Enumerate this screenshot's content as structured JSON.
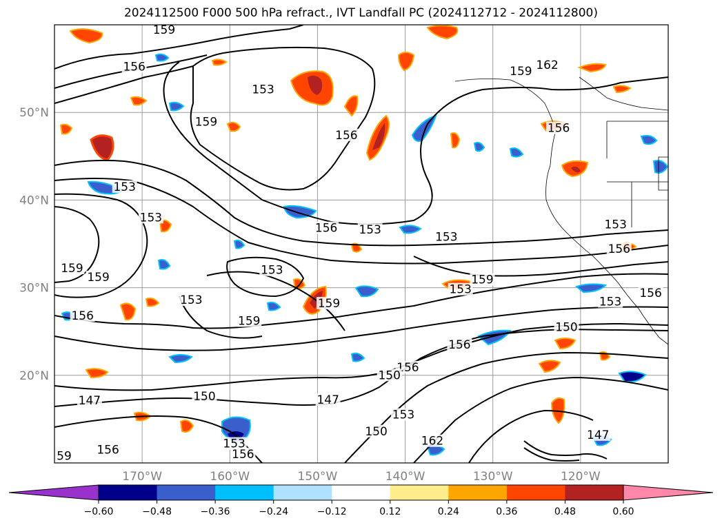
{
  "title": "2024112500 F000 500 hPa refract., IVT Landfall PC (2024112712 - 2024112800)",
  "latitude_labels": [
    {
      "lat": 50,
      "text": "50°N"
    },
    {
      "lat": 40,
      "text": "40°N"
    },
    {
      "lat": 30,
      "text": "30°N"
    },
    {
      "lat": 20,
      "text": "20°N"
    }
  ],
  "longitude_labels": [
    {
      "lon": -170,
      "text": "170°W"
    },
    {
      "lon": -160,
      "text": "160°W"
    },
    {
      "lon": -150,
      "text": "150°W"
    },
    {
      "lon": -140,
      "text": "140°W"
    },
    {
      "lon": -130,
      "text": "130°W"
    },
    {
      "lon": -120,
      "text": "120°W"
    }
  ],
  "map_extent": {
    "lon_min": -180,
    "lon_max": -110,
    "lat_min": 10,
    "lat_max": 60
  },
  "colorbar": {
    "levels": [
      "−0.60",
      "−0.48",
      "−0.36",
      "−0.24",
      "−0.12",
      "0.12",
      "0.24",
      "0.36",
      "0.48",
      "0.60"
    ],
    "colors": [
      "#9932cc",
      "#00008b",
      "#3a5fcd",
      "#00bfff",
      "#b0e2ff",
      "#ffffff",
      "#ffec8b",
      "#ffa500",
      "#ff4500",
      "#b22222",
      "#ff88aa"
    ]
  },
  "contour_labels": [
    {
      "text": "159",
      "lon": -167.5,
      "lat": 59.2
    },
    {
      "text": "156",
      "lon": -170.9,
      "lat": 55.0
    },
    {
      "text": "153",
      "lon": -156.2,
      "lat": 52.4
    },
    {
      "text": "159",
      "lon": -162.7,
      "lat": 48.7
    },
    {
      "text": "156",
      "lon": -146.7,
      "lat": 47.2
    },
    {
      "text": "153",
      "lon": -172.0,
      "lat": 41.3
    },
    {
      "text": "153",
      "lon": -169.0,
      "lat": 37.8
    },
    {
      "text": "156",
      "lon": -149.0,
      "lat": 36.6
    },
    {
      "text": "153",
      "lon": -144.0,
      "lat": 36.4
    },
    {
      "text": "153",
      "lon": -135.3,
      "lat": 35.6
    },
    {
      "text": "153",
      "lon": -155.2,
      "lat": 31.8
    },
    {
      "text": "159",
      "lon": -178.0,
      "lat": 32.0
    },
    {
      "text": "159",
      "lon": -175.0,
      "lat": 31.0
    },
    {
      "text": "153",
      "lon": -164.4,
      "lat": 28.4
    },
    {
      "text": "159",
      "lon": -148.7,
      "lat": 28.0
    },
    {
      "text": "156",
      "lon": -176.8,
      "lat": 26.6
    },
    {
      "text": "159",
      "lon": -157.8,
      "lat": 26.0
    },
    {
      "text": "150",
      "lon": -121.6,
      "lat": 25.3
    },
    {
      "text": "156",
      "lon": -133.8,
      "lat": 23.3
    },
    {
      "text": "156",
      "lon": -139.7,
      "lat": 20.7
    },
    {
      "text": "150",
      "lon": -141.8,
      "lat": 19.8
    },
    {
      "text": "147",
      "lon": -176.0,
      "lat": 16.9
    },
    {
      "text": "150",
      "lon": -162.9,
      "lat": 17.4
    },
    {
      "text": "147",
      "lon": -148.8,
      "lat": 17.0
    },
    {
      "text": "153",
      "lon": -140.2,
      "lat": 15.3
    },
    {
      "text": "150",
      "lon": -143.3,
      "lat": 13.4
    },
    {
      "text": "162",
      "lon": -136.9,
      "lat": 12.3
    },
    {
      "text": "153",
      "lon": -159.5,
      "lat": 12.0
    },
    {
      "text": "156",
      "lon": -158.5,
      "lat": 10.8
    },
    {
      "text": "156",
      "lon": -173.9,
      "lat": 11.3
    },
    {
      "text": "59",
      "lon": -178.9,
      "lat": 10.6
    },
    {
      "text": "147",
      "lon": -118.0,
      "lat": 13.0
    },
    {
      "text": "153",
      "lon": -116.0,
      "lat": 37.0
    },
    {
      "text": "156",
      "lon": -115.6,
      "lat": 34.2
    },
    {
      "text": "156",
      "lon": -112.0,
      "lat": 29.2
    },
    {
      "text": "153",
      "lon": -116.6,
      "lat": 28.2
    },
    {
      "text": "153",
      "lon": -133.7,
      "lat": 29.6
    },
    {
      "text": "159",
      "lon": -131.2,
      "lat": 30.7
    },
    {
      "text": "159",
      "lon": -126.8,
      "lat": 54.5
    },
    {
      "text": "162",
      "lon": -123.8,
      "lat": 55.2
    },
    {
      "text": "156",
      "lon": -122.5,
      "lat": 48.0
    }
  ]
}
